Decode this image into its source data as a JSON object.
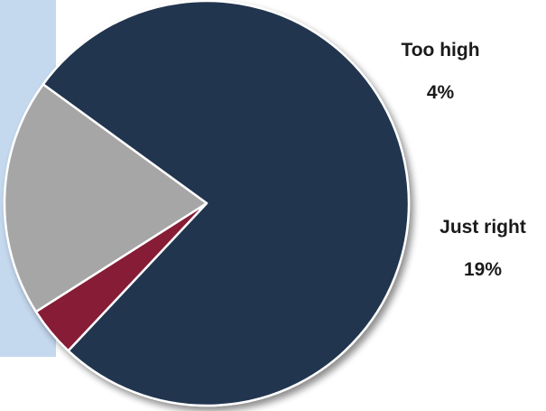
{
  "chart_data": {
    "type": "pie",
    "slices": [
      {
        "label": "",
        "value": 77,
        "value_label": "",
        "color": "#22344f"
      },
      {
        "label": "Too high",
        "value": 4,
        "value_label": "4%",
        "color": "#861b35"
      },
      {
        "label": "Just right",
        "value": 19,
        "value_label": "19%",
        "color": "#a6a6a6"
      }
    ],
    "start_angle_deg": -54,
    "direction": "clockwise"
  },
  "colors": {
    "side_band": "#c4d8ee",
    "label_text": "#1a1a1a"
  }
}
